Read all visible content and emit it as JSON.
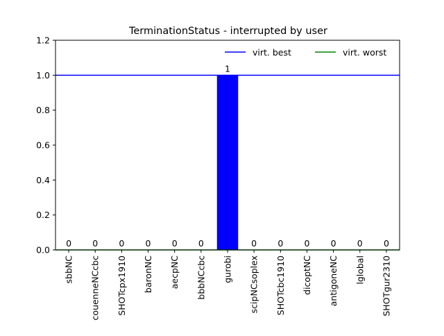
{
  "chart_data": {
    "type": "bar",
    "title": "TerminationStatus - interrupted by user",
    "xlabel": "",
    "ylabel": "",
    "categories": [
      "sbbNC",
      "couenneNCcbc",
      "SHOTcpx1910",
      "baronNC",
      "aecpNC",
      "bbbNCcbc",
      "gurobi",
      "scipNCsoplex",
      "SHOTcbc1910",
      "dicoptNC",
      "antigoneNC",
      "lglobal",
      "SHOTgur2310"
    ],
    "values": [
      0,
      0,
      0,
      0,
      0,
      0,
      1,
      0,
      0,
      0,
      0,
      0,
      0
    ],
    "value_labels": [
      "0",
      "0",
      "0",
      "0",
      "0",
      "0",
      "1",
      "0",
      "0",
      "0",
      "0",
      "0",
      "0"
    ],
    "ylim": [
      0,
      1.2
    ],
    "yticks": [
      "0.0",
      "0.2",
      "0.4",
      "0.6",
      "0.8",
      "1.0",
      "1.2"
    ],
    "bar_color": "#0000ff",
    "reference_lines": [
      {
        "name": "virt. best",
        "y": 1.0,
        "color": "#0000ff"
      },
      {
        "name": "virt. worst",
        "y": 0.0,
        "color": "#008000"
      }
    ],
    "legend_placement": "top-right",
    "grid": false
  }
}
